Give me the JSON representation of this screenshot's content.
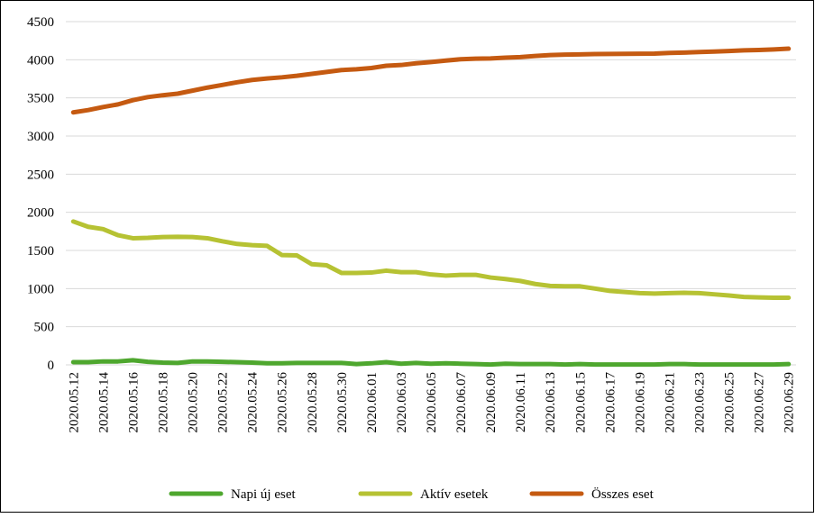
{
  "chart_data": {
    "type": "line",
    "categories": [
      "2020.05.12",
      null,
      "2020.05.14",
      null,
      "2020.05.16",
      null,
      "2020.05.18",
      null,
      "2020.05.20",
      null,
      "2020.05.22",
      null,
      "2020.05.24",
      null,
      "2020.05.26",
      null,
      "2020.05.28",
      null,
      "2020.05.30",
      null,
      "2020.06.01",
      null,
      "2020.06.03",
      null,
      "2020.06.05",
      null,
      "2020.06.07",
      null,
      "2020.06.09",
      null,
      "2020.06.11",
      null,
      "2020.06.13",
      null,
      "2020.06.15",
      null,
      "2020.06.17",
      null,
      "2020.06.19",
      null,
      "2020.06.21",
      null,
      "2020.06.23",
      null,
      "2020.06.25",
      null,
      "2020.06.27",
      null,
      "2020.06.29"
    ],
    "series": [
      {
        "name": "Napi új eset",
        "color": "#4ea72e",
        "values": [
          35,
          35,
          45,
          45,
          60,
          40,
          30,
          25,
          45,
          45,
          40,
          35,
          30,
          20,
          20,
          25,
          25,
          25,
          25,
          10,
          20,
          35,
          15,
          25,
          15,
          20,
          15,
          10,
          5,
          15,
          10,
          10,
          10,
          5,
          10,
          5,
          5,
          5,
          5,
          5,
          10,
          10,
          5,
          5,
          5,
          5,
          5,
          5,
          10
        ]
      },
      {
        "name": "Aktív esetek",
        "color": "#b6c233",
        "values": [
          1880,
          1810,
          1780,
          1700,
          1660,
          1665,
          1675,
          1678,
          1676,
          1660,
          1620,
          1585,
          1570,
          1560,
          1440,
          1435,
          1320,
          1305,
          1205,
          1205,
          1210,
          1235,
          1215,
          1215,
          1185,
          1170,
          1180,
          1180,
          1145,
          1125,
          1100,
          1060,
          1035,
          1030,
          1030,
          1000,
          970,
          955,
          940,
          935,
          940,
          945,
          940,
          925,
          910,
          890,
          885,
          880,
          880
        ]
      },
      {
        "name": "Összes eset",
        "color": "#c55a11",
        "values": [
          3310,
          3340,
          3380,
          3415,
          3470,
          3510,
          3535,
          3555,
          3595,
          3635,
          3670,
          3705,
          3735,
          3755,
          3770,
          3790,
          3815,
          3840,
          3865,
          3876,
          3892,
          3921,
          3931,
          3954,
          3970,
          3989,
          4007,
          4014,
          4017,
          4027,
          4035,
          4050,
          4061,
          4067,
          4070,
          4075,
          4077,
          4078,
          4079,
          4081,
          4090,
          4094,
          4102,
          4107,
          4115,
          4123,
          4128,
          4135,
          4145
        ]
      }
    ],
    "ylim": [
      0,
      4500
    ],
    "yticks": [
      0,
      500,
      1000,
      1500,
      2000,
      2500,
      3000,
      3500,
      4000,
      4500
    ],
    "grid": true,
    "legend": "bottom"
  }
}
